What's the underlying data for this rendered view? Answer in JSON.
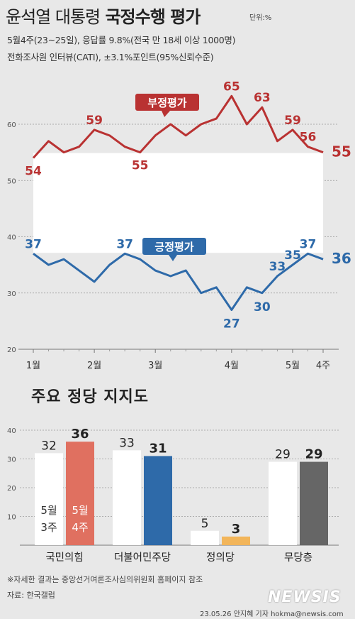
{
  "header": {
    "title_part1": "윤석열 대통령",
    "title_part2": "국정수행 평가",
    "unit": "단위:%",
    "subtitle1": "5월4주(23∼25일), 응답률 9.8%(전국 만 18세 이상 1000명)",
    "subtitle2": "전화조사원 인터뷰(CATI), ±3.1%포인트(95%신뢰수준)"
  },
  "colors": {
    "negative": "#b93232",
    "positive": "#2e6aa9",
    "bar_may3": "#ffffff",
    "bar_may4": "#e07060",
    "bar_may4_jeongui": "#f2b55a",
    "bar_may4_none": "#666666"
  },
  "chart_data": [
    {
      "type": "line",
      "ylim": [
        20,
        70
      ],
      "yticks": [
        20,
        30,
        40,
        50,
        60
      ],
      "month_labels": [
        "1월",
        "2월",
        "3월",
        "4월",
        "5월",
        "4주"
      ],
      "series": [
        {
          "name": "부정평가",
          "values": [
            54,
            57,
            55,
            56,
            59,
            58,
            56,
            55,
            58,
            60,
            58,
            60,
            61,
            65,
            60,
            63,
            57,
            59,
            56,
            55
          ],
          "labels": [
            {
              "i": 0,
              "v": "54"
            },
            {
              "i": 4,
              "v": "59"
            },
            {
              "i": 7,
              "v": "55"
            },
            {
              "i": 13,
              "v": "65"
            },
            {
              "i": 15,
              "v": "63"
            },
            {
              "i": 17,
              "v": "59"
            },
            {
              "i": 18,
              "v": "56"
            },
            {
              "i": 19,
              "v": "55"
            }
          ]
        },
        {
          "name": "긍정평가",
          "values": [
            37,
            35,
            36,
            34,
            32,
            35,
            37,
            36,
            34,
            33,
            34,
            30,
            31,
            27,
            31,
            30,
            33,
            35,
            37,
            36
          ],
          "labels": [
            {
              "i": 0,
              "v": "37"
            },
            {
              "i": 6,
              "v": "37"
            },
            {
              "i": 13,
              "v": "27"
            },
            {
              "i": 15,
              "v": "30"
            },
            {
              "i": 16,
              "v": "33"
            },
            {
              "i": 17,
              "v": "35"
            },
            {
              "i": 18,
              "v": "37"
            },
            {
              "i": 19,
              "v": "36"
            }
          ]
        }
      ]
    },
    {
      "type": "bar",
      "title": "주요 정당 지지도",
      "ylim": [
        0,
        40
      ],
      "yticks": [
        10,
        20,
        30,
        40
      ],
      "categories": [
        "국민의힘",
        "더불어민주당",
        "정의당",
        "무당층"
      ],
      "series": [
        {
          "name": "5월 3주",
          "values": [
            32,
            33,
            5,
            29
          ]
        },
        {
          "name": "5월 4주",
          "values": [
            36,
            31,
            3,
            29
          ]
        }
      ],
      "legend_may3": [
        "5월",
        "3주"
      ],
      "legend_may4": [
        "5월",
        "4주"
      ]
    }
  ],
  "footer": {
    "note": "※자세한 결과는 중앙선거여론조사심의위원회 홈페이지 참조",
    "source": "자료: 한국갤럽",
    "credit": "23.05.26 안지혜 기자 hokma@newsis.com",
    "logo": "NEWSIS"
  }
}
